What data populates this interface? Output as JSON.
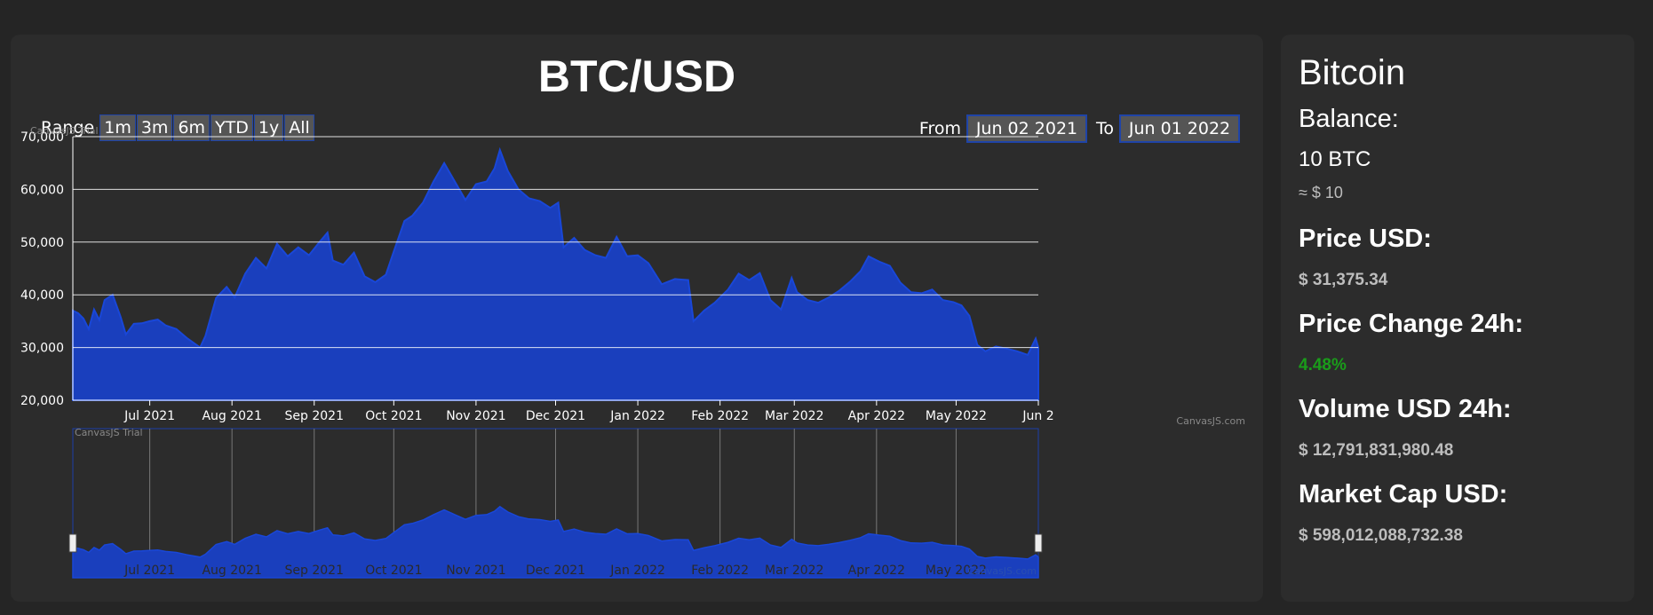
{
  "chart": {
    "title": "BTC/USD",
    "range_label": "Range",
    "range_buttons": [
      "1m",
      "3m",
      "6m",
      "YTD",
      "1y",
      "All"
    ],
    "from_label": "From",
    "from_value": "Jun 02 2021",
    "to_label": "To",
    "to_value": "Jun 01 2022",
    "watermark_trial": "CanvasJS Trial",
    "watermark_site": "CanvasJS.com",
    "colors": {
      "fill": "#1a3fbd",
      "line": "#1947d8",
      "grid": "#ffffff"
    }
  },
  "chart_data": {
    "type": "area",
    "title": "BTC/USD",
    "xlabel": "",
    "ylabel": "",
    "ylim": [
      20000,
      70000
    ],
    "xlim": [
      "2021-06-02",
      "2022-06-01"
    ],
    "y_ticks": [
      "20,000",
      "30,000",
      "40,000",
      "50,000",
      "60,000",
      "70,000"
    ],
    "x_ticks": [
      "Jul 2021",
      "Aug 2021",
      "Sep 2021",
      "Oct 2021",
      "Nov 2021",
      "Dec 2021",
      "Jan 2022",
      "Feb 2022",
      "Mar 2022",
      "Apr 2022",
      "May 2022",
      "Jun 2"
    ],
    "navigator_ticks": [
      "Jul 2021",
      "Aug 2021",
      "Sep 2021",
      "Oct 2021",
      "Nov 2021",
      "Dec 2021",
      "Jan 2022",
      "Feb 2022",
      "Mar 2022",
      "Apr 2022",
      "May 2022"
    ],
    "grid": true,
    "series": [
      {
        "x": [
          "2021-06-02",
          "2021-06-04",
          "2021-06-06",
          "2021-06-08",
          "2021-06-10",
          "2021-06-12",
          "2021-06-14",
          "2021-06-17",
          "2021-06-20",
          "2021-06-22",
          "2021-06-25",
          "2021-06-28",
          "2021-07-01",
          "2021-07-04",
          "2021-07-07",
          "2021-07-11",
          "2021-07-15",
          "2021-07-20",
          "2021-07-22",
          "2021-07-26",
          "2021-07-30",
          "2021-08-02",
          "2021-08-06",
          "2021-08-10",
          "2021-08-14",
          "2021-08-18",
          "2021-08-22",
          "2021-08-26",
          "2021-08-30",
          "2021-09-03",
          "2021-09-06",
          "2021-09-08",
          "2021-09-12",
          "2021-09-16",
          "2021-09-20",
          "2021-09-24",
          "2021-09-28",
          "2021-10-01",
          "2021-10-05",
          "2021-10-08",
          "2021-10-12",
          "2021-10-16",
          "2021-10-20",
          "2021-10-24",
          "2021-10-28",
          "2021-11-01",
          "2021-11-05",
          "2021-11-08",
          "2021-11-10",
          "2021-11-13",
          "2021-11-17",
          "2021-11-21",
          "2021-11-25",
          "2021-11-29",
          "2021-12-02",
          "2021-12-04",
          "2021-12-08",
          "2021-12-12",
          "2021-12-16",
          "2021-12-20",
          "2021-12-24",
          "2021-12-28",
          "2022-01-01",
          "2022-01-05",
          "2022-01-10",
          "2022-01-15",
          "2022-01-20",
          "2022-01-22",
          "2022-01-26",
          "2022-01-30",
          "2022-02-04",
          "2022-02-08",
          "2022-02-12",
          "2022-02-16",
          "2022-02-20",
          "2022-02-24",
          "2022-02-28",
          "2022-03-02",
          "2022-03-06",
          "2022-03-10",
          "2022-03-14",
          "2022-03-18",
          "2022-03-22",
          "2022-03-26",
          "2022-03-29",
          "2022-04-02",
          "2022-04-06",
          "2022-04-10",
          "2022-04-14",
          "2022-04-18",
          "2022-04-22",
          "2022-04-26",
          "2022-04-30",
          "2022-05-03",
          "2022-05-06",
          "2022-05-09",
          "2022-05-12",
          "2022-05-16",
          "2022-05-20",
          "2022-05-24",
          "2022-05-28",
          "2022-05-31",
          "2022-06-01"
        ],
        "y": [
          37000,
          36500,
          35500,
          33500,
          37200,
          35200,
          39000,
          40000,
          35800,
          32500,
          34500,
          34600,
          35000,
          35300,
          34200,
          33500,
          31800,
          30000,
          32200,
          39400,
          41500,
          39500,
          44000,
          47000,
          45000,
          49700,
          47300,
          49000,
          47500,
          50000,
          51800,
          46500,
          45700,
          48000,
          43500,
          42400,
          43800,
          48200,
          54000,
          55000,
          57500,
          61500,
          65000,
          61500,
          58000,
          61000,
          61500,
          64000,
          67500,
          63500,
          60000,
          58300,
          57800,
          56500,
          57500,
          49000,
          50800,
          48500,
          47500,
          47000,
          51000,
          47300,
          47500,
          46000,
          42000,
          43000,
          42800,
          35000,
          37000,
          38500,
          41000,
          44000,
          42800,
          44100,
          39000,
          37200,
          43200,
          40500,
          39000,
          38500,
          39500,
          40800,
          42500,
          44500,
          47300,
          46300,
          45500,
          42300,
          40500,
          40300,
          41000,
          39000,
          38600,
          38000,
          36000,
          30500,
          29300,
          30200,
          29800,
          29300,
          28600,
          31700,
          30000
        ]
      }
    ]
  },
  "info": {
    "name": "Bitcoin",
    "balance_label": "Balance:",
    "balance_value": "10 BTC",
    "balance_usd": "≈ $ 10",
    "price_label": "Price USD:",
    "price_value": "$ 31,375.34",
    "change_label": "Price Change 24h:",
    "change_value": "4.48%",
    "change_color": "#1a9c1a",
    "volume_label": "Volume USD 24h:",
    "volume_value": "$ 12,791,831,980.48",
    "mcap_label": "Market Cap USD:",
    "mcap_value": "$ 598,012,088,732.38"
  }
}
